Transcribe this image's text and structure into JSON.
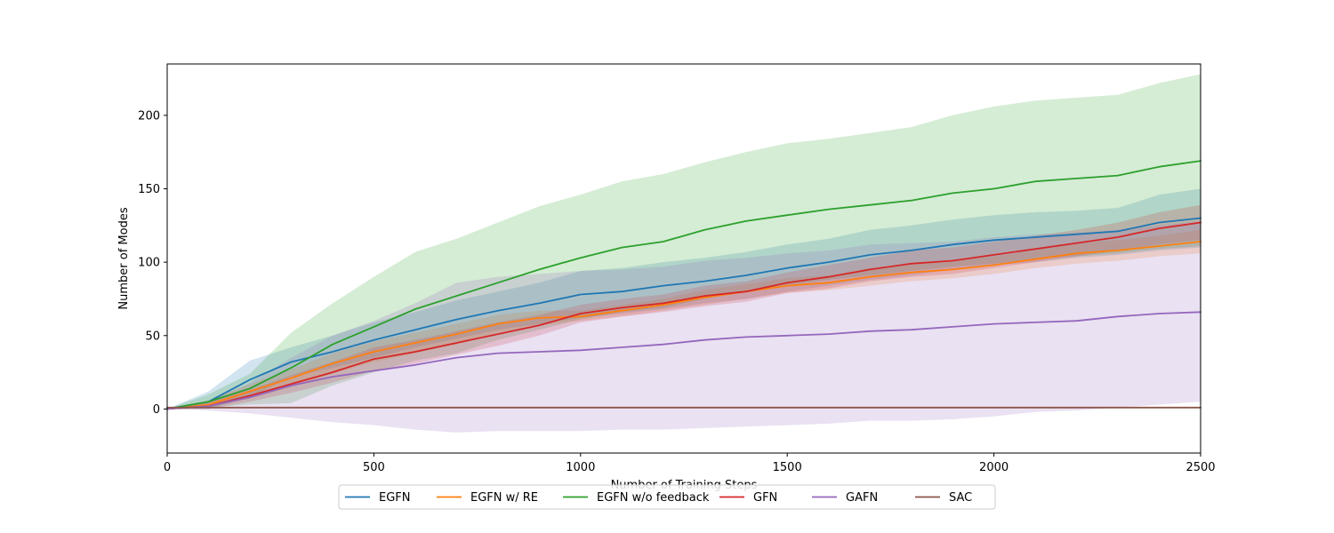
{
  "chart_data": {
    "type": "line",
    "xlabel": "Number of Training Steps",
    "ylabel": "Number of Modes",
    "xlim": [
      0,
      2500
    ],
    "ylim": [
      -30,
      235
    ],
    "xticks": [
      0,
      500,
      1000,
      1500,
      2000,
      2500
    ],
    "yticks": [
      0,
      50,
      100,
      150,
      200
    ],
    "grid": false,
    "legend_position": "bottom-center",
    "x": [
      0,
      100,
      200,
      300,
      400,
      500,
      600,
      700,
      800,
      900,
      1000,
      1100,
      1200,
      1300,
      1400,
      1500,
      1600,
      1700,
      1800,
      1900,
      2000,
      2100,
      2200,
      2300,
      2400,
      2500
    ],
    "series": [
      {
        "name": "EGFN",
        "color": "#1f77b4",
        "values": [
          0,
          5,
          20,
          32,
          39,
          47,
          54,
          61,
          67,
          72,
          78,
          80,
          84,
          87,
          91,
          96,
          100,
          105,
          108,
          112,
          115,
          117,
          119,
          121,
          127,
          130
        ],
        "lower": [
          0,
          0,
          8,
          22,
          28,
          35,
          42,
          48,
          54,
          58,
          62,
          65,
          68,
          72,
          75,
          80,
          84,
          88,
          91,
          95,
          98,
          100,
          103,
          105,
          108,
          110
        ],
        "upper": [
          0,
          12,
          33,
          42,
          50,
          59,
          66,
          74,
          80,
          86,
          94,
          96,
          100,
          103,
          107,
          112,
          116,
          122,
          125,
          129,
          132,
          134,
          135,
          137,
          146,
          150
        ]
      },
      {
        "name": "EGFN w/ RE",
        "color": "#ff7f0e",
        "values": [
          0,
          3,
          12,
          21,
          31,
          39,
          45,
          51,
          58,
          62,
          63,
          67,
          71,
          76,
          80,
          84,
          86,
          90,
          93,
          95,
          98,
          102,
          106,
          108,
          111,
          114
        ],
        "lower": [
          0,
          1,
          7,
          15,
          24,
          32,
          38,
          44,
          52,
          57,
          60,
          63,
          67,
          71,
          75,
          79,
          81,
          84,
          87,
          89,
          92,
          96,
          99,
          101,
          104,
          106
        ],
        "upper": [
          0,
          6,
          17,
          27,
          38,
          46,
          52,
          58,
          64,
          67,
          67,
          71,
          75,
          81,
          85,
          89,
          91,
          96,
          99,
          101,
          104,
          108,
          113,
          115,
          118,
          122
        ]
      },
      {
        "name": "EGFN w/o feedback",
        "color": "#2ca02c",
        "values": [
          0,
          5,
          14,
          28,
          44,
          56,
          68,
          77,
          86,
          95,
          103,
          110,
          114,
          122,
          128,
          132,
          136,
          139,
          142,
          147,
          150,
          155,
          157,
          159,
          165,
          169
        ],
        "lower": [
          0,
          1,
          3,
          4,
          16,
          25,
          33,
          38,
          47,
          54,
          61,
          66,
          69,
          75,
          80,
          84,
          88,
          91,
          94,
          97,
          99,
          102,
          104,
          106,
          109,
          111
        ],
        "upper": [
          0,
          10,
          24,
          52,
          72,
          90,
          107,
          116,
          127,
          138,
          146,
          155,
          160,
          168,
          175,
          181,
          184,
          188,
          192,
          200,
          206,
          210,
          212,
          214,
          222,
          228
        ]
      },
      {
        "name": "GFN",
        "color": "#d62728",
        "values": [
          0,
          2,
          9,
          17,
          25,
          34,
          39,
          45,
          51,
          57,
          65,
          69,
          72,
          77,
          80,
          86,
          90,
          95,
          99,
          101,
          105,
          109,
          113,
          117,
          123,
          127
        ],
        "lower": [
          0,
          0,
          5,
          11,
          18,
          26,
          31,
          37,
          43,
          50,
          59,
          63,
          66,
          70,
          73,
          79,
          82,
          87,
          90,
          92,
          96,
          100,
          104,
          108,
          112,
          115
        ],
        "upper": [
          0,
          5,
          13,
          23,
          32,
          42,
          47,
          53,
          59,
          64,
          71,
          75,
          78,
          84,
          87,
          93,
          98,
          103,
          108,
          110,
          114,
          118,
          122,
          127,
          134,
          139
        ]
      },
      {
        "name": "GAFN",
        "color": "#9467bd",
        "values": [
          0,
          2,
          8,
          16,
          22,
          26,
          30,
          35,
          38,
          39,
          40,
          42,
          44,
          47,
          49,
          50,
          51,
          53,
          54,
          56,
          58,
          59,
          60,
          63,
          65,
          66
        ],
        "lower": [
          0,
          -1,
          -3,
          -6,
          -9,
          -11,
          -14,
          -16,
          -15,
          -15,
          -15,
          -14,
          -14,
          -13,
          -12,
          -11,
          -10,
          -8,
          -8,
          -7,
          -5,
          -2,
          -1,
          1,
          3,
          5
        ],
        "upper": [
          0,
          5,
          18,
          35,
          50,
          60,
          72,
          86,
          90,
          92,
          94,
          95,
          97,
          101,
          103,
          106,
          108,
          112,
          113,
          114,
          117,
          119,
          120,
          122,
          125,
          128
        ]
      },
      {
        "name": "SAC",
        "color": "#8c564b",
        "values": [
          1,
          1,
          1,
          1,
          1,
          1,
          1,
          1,
          1,
          1,
          1,
          1,
          1,
          1,
          1,
          1,
          1,
          1,
          1,
          1,
          1,
          1,
          1,
          1,
          1,
          1
        ]
      }
    ]
  }
}
